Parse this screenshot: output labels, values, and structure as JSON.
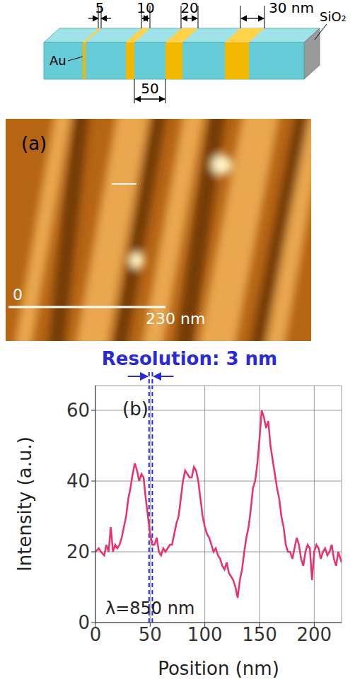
{
  "diagram": {
    "dimension_labels": [
      "5",
      "10",
      "20",
      "30 nm"
    ],
    "spacing_label": "50",
    "metal": "Au",
    "substrate": "SiO₂"
  },
  "image": {
    "panel": "(a)",
    "scale_start": "0",
    "scale_end": "230 nm"
  },
  "chart_data": {
    "type": "line",
    "panel": "(b)",
    "title": "Resolution: 3 nm",
    "annotation": "λ=850 nm",
    "x_label": "Position (nm)",
    "y_label": "Intensity (a.u.)",
    "x": [
      0,
      3,
      5,
      8,
      10,
      12,
      14,
      16,
      18,
      20,
      22,
      24,
      26,
      28,
      30,
      32,
      34,
      36,
      38,
      40,
      42,
      44,
      46,
      48,
      50,
      52,
      54,
      56,
      58,
      60,
      62,
      64,
      66,
      68,
      70,
      72,
      74,
      76,
      78,
      80,
      82,
      84,
      86,
      88,
      90,
      92,
      94,
      96,
      98,
      100,
      102,
      104,
      106,
      108,
      110,
      112,
      114,
      116,
      118,
      120,
      122,
      124,
      126,
      128,
      130,
      132,
      134,
      136,
      138,
      140,
      142,
      144,
      146,
      148,
      150,
      152,
      154,
      156,
      158,
      160,
      162,
      164,
      166,
      168,
      170,
      172,
      174,
      176,
      178,
      180,
      182,
      184,
      186,
      188,
      190,
      192,
      194,
      196,
      198,
      200,
      202,
      204,
      206,
      208,
      210,
      212,
      214,
      216,
      218,
      220,
      222,
      225
    ],
    "values": [
      20,
      21,
      20,
      19,
      22,
      20,
      27,
      20,
      22,
      21,
      22,
      24,
      27,
      30,
      35,
      38,
      42,
      45,
      43,
      40,
      42,
      41,
      35,
      30,
      25,
      22,
      22,
      24,
      20,
      19,
      21,
      20,
      21,
      22,
      22,
      25,
      28,
      30,
      35,
      40,
      43,
      42,
      41,
      41,
      44,
      43,
      40,
      35,
      30,
      27,
      25,
      24,
      22,
      20,
      21,
      19,
      18,
      16,
      15,
      17,
      14,
      13,
      12,
      10,
      7,
      12,
      15,
      20,
      24,
      27,
      32,
      38,
      40,
      45,
      52,
      60,
      58,
      55,
      57,
      50,
      46,
      42,
      38,
      35,
      30,
      27,
      22,
      20,
      20,
      18,
      21,
      24,
      22,
      18,
      16,
      20,
      22,
      21,
      12,
      20,
      22,
      21,
      18,
      20,
      21,
      19,
      20,
      22,
      18,
      16,
      20,
      17
    ],
    "color": "#e8326e",
    "xlim": [
      0,
      225
    ],
    "ylim": [
      0,
      67
    ],
    "xticks": [
      0,
      50,
      100,
      150,
      200
    ],
    "yticks": [
      0,
      20,
      40,
      60
    ],
    "grid": true,
    "resolution_lines": [
      49,
      52
    ]
  }
}
